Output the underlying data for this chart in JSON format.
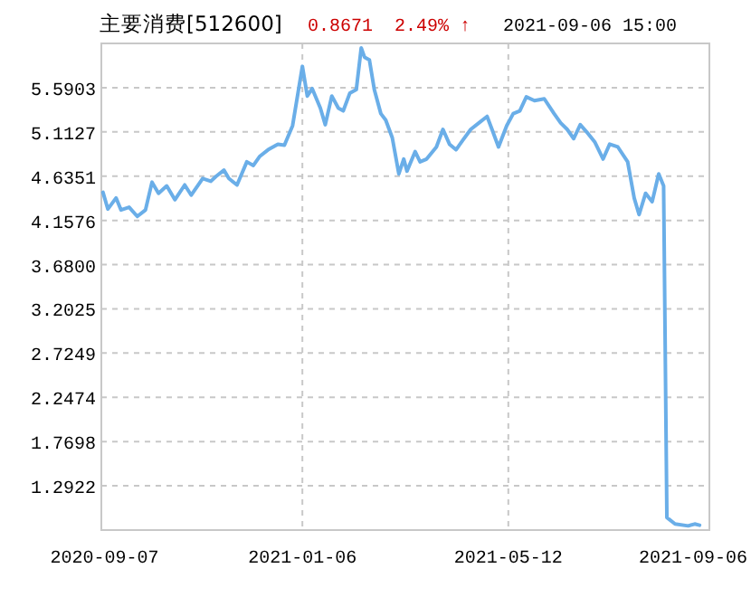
{
  "chart_data": {
    "type": "line",
    "title": "主要消费[512600]",
    "annotations": [
      "0.8671",
      "2.49% ↑",
      "2021-09-06 15:00"
    ],
    "x": [
      "2020-09-06",
      "2020-09-09",
      "2020-09-14",
      "2020-09-17",
      "2020-09-22",
      "2020-09-27",
      "2020-10-02",
      "2020-10-06",
      "2020-10-10",
      "2020-10-15",
      "2020-10-20",
      "2020-10-26",
      "2020-10-30",
      "2020-11-06",
      "2020-11-11",
      "2020-11-14",
      "2020-11-19",
      "2020-11-22",
      "2020-11-27",
      "2020-12-03",
      "2020-12-07",
      "2020-12-11",
      "2020-12-16",
      "2020-12-22",
      "2020-12-26",
      "2020-12-31",
      "2021-01-03",
      "2021-01-06",
      "2021-01-09",
      "2021-01-12",
      "2021-01-17",
      "2021-01-20",
      "2021-01-24",
      "2021-01-28",
      "2021-01-31",
      "2021-02-04",
      "2021-02-08",
      "2021-02-11",
      "2021-02-13",
      "2021-02-16",
      "2021-02-19",
      "2021-02-23",
      "2021-02-26",
      "2021-03-02",
      "2021-03-06",
      "2021-03-09",
      "2021-03-11",
      "2021-03-16",
      "2021-03-19",
      "2021-03-23",
      "2021-03-29",
      "2021-04-02",
      "2021-04-06",
      "2021-04-10",
      "2021-04-14",
      "2021-04-19",
      "2021-04-24",
      "2021-04-29",
      "2021-05-02",
      "2021-05-06",
      "2021-05-11",
      "2021-05-15",
      "2021-05-19",
      "2021-05-23",
      "2021-05-28",
      "2021-06-03",
      "2021-06-09",
      "2021-06-13",
      "2021-06-17",
      "2021-06-21",
      "2021-06-25",
      "2021-06-29",
      "2021-07-04",
      "2021-07-09",
      "2021-07-13",
      "2021-07-18",
      "2021-07-24",
      "2021-07-28",
      "2021-07-31",
      "2021-08-04",
      "2021-08-08",
      "2021-08-12",
      "2021-08-15",
      "2021-08-17",
      "2021-08-22",
      "2021-08-30",
      "2021-09-03",
      "2021-09-06"
    ],
    "series": [
      {
        "color": "#6aaee8",
        "values": [
          4.46,
          4.28,
          4.4,
          4.27,
          4.3,
          4.2,
          4.27,
          4.57,
          4.45,
          4.53,
          4.38,
          4.54,
          4.43,
          4.61,
          4.58,
          4.63,
          4.7,
          4.61,
          4.54,
          4.79,
          4.75,
          4.85,
          4.92,
          4.98,
          4.97,
          5.18,
          5.5,
          5.82,
          5.5,
          5.58,
          5.37,
          5.19,
          5.5,
          5.37,
          5.34,
          5.53,
          5.57,
          6.02,
          5.92,
          5.89,
          5.57,
          5.31,
          5.24,
          5.05,
          4.66,
          4.82,
          4.69,
          4.9,
          4.79,
          4.82,
          4.95,
          5.14,
          4.98,
          4.92,
          5.02,
          5.14,
          5.21,
          5.28,
          5.14,
          4.95,
          5.18,
          5.31,
          5.34,
          5.49,
          5.45,
          5.47,
          5.31,
          5.21,
          5.14,
          5.04,
          5.19,
          5.11,
          5.0,
          4.82,
          4.98,
          4.95,
          4.79,
          4.4,
          4.22,
          4.45,
          4.36,
          4.66,
          4.53,
          0.95,
          0.88,
          0.86,
          0.88,
          0.8671
        ]
      }
    ],
    "xlim": [
      "2020-09-05",
      "2021-09-12"
    ],
    "xticks": [
      "2020-09-07",
      "2021-01-06",
      "2021-05-12",
      "2021-09-06"
    ],
    "ylim": [
      0.8146,
      6.0679
    ],
    "yticks": [
      1.2922,
      1.7698,
      2.2474,
      2.7249,
      3.2025,
      {
        "value": 3.68,
        "label": "3.6800"
      },
      4.1576,
      4.6351,
      5.1127,
      5.5903
    ],
    "grid": true
  }
}
